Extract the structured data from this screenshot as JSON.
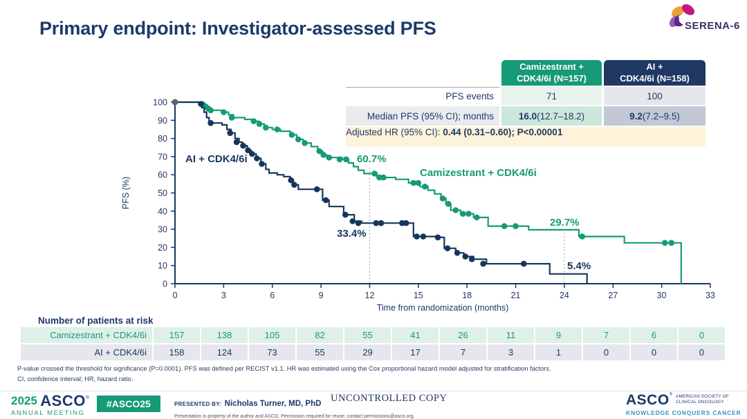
{
  "slide": {
    "title": "Primary endpoint: Investigator-assessed PFS",
    "logo_text": "SERENA-6"
  },
  "summary_table": {
    "header": [
      {
        "line1": "Camizestrant +",
        "line2": "CDK4/6i (N=157)"
      },
      {
        "line1": "AI +",
        "line2": "CDK4/6i (N=158)"
      }
    ],
    "rows": [
      {
        "label": "PFS events",
        "cami": "71",
        "ai": "100"
      },
      {
        "label": "Median PFS (95% CI); months",
        "cami_bold": "16.0",
        "cami_rest": " (12.7–18.2)",
        "ai_bold": "9.2",
        "ai_rest": " (7.2–9.5)"
      }
    ],
    "hr": {
      "label": "Adjusted HR (95% CI): ",
      "value": "0.44 (0.31–0.60); P<0.00001"
    }
  },
  "chart_data": {
    "type": "line",
    "subtype": "kaplan-meier-step",
    "xlabel": "Time from randomization (months)",
    "ylabel": "PFS (%)",
    "xlim": [
      0,
      33
    ],
    "ylim": [
      0,
      100
    ],
    "xticks": [
      0,
      3,
      6,
      9,
      12,
      15,
      18,
      21,
      24,
      27,
      30,
      33
    ],
    "yticks": [
      0,
      10,
      20,
      30,
      40,
      50,
      60,
      70,
      80,
      90,
      100
    ],
    "axis_color": "#16365e",
    "reference_lines": [
      {
        "x": 12,
        "y_top": 64
      },
      {
        "x": 24,
        "y_top": 30
      }
    ],
    "start_marker": {
      "x": 0,
      "y": 100,
      "color": "#5a6170"
    },
    "series": [
      {
        "name": "Camizestrant + CDK4/6i",
        "color": "#169a78",
        "steps": [
          [
            0,
            100
          ],
          [
            1.6,
            100
          ],
          [
            1.75,
            98.5
          ],
          [
            1.9,
            97.5
          ],
          [
            2.05,
            96.5
          ],
          [
            2.2,
            95.5
          ],
          [
            2.9,
            94.5
          ],
          [
            3.3,
            93
          ],
          [
            3.6,
            91.5
          ],
          [
            4.3,
            90.5
          ],
          [
            4.8,
            89.5
          ],
          [
            5.15,
            88
          ],
          [
            5.5,
            86
          ],
          [
            6.0,
            85
          ],
          [
            6.5,
            84
          ],
          [
            7.1,
            82
          ],
          [
            7.5,
            79.5
          ],
          [
            7.9,
            77.5
          ],
          [
            8.4,
            75.5
          ],
          [
            8.8,
            73
          ],
          [
            9.1,
            71
          ],
          [
            9.35,
            69.5
          ],
          [
            10.3,
            68.5
          ],
          [
            10.7,
            66.5
          ],
          [
            11.0,
            64.5
          ],
          [
            11.3,
            62.5
          ],
          [
            11.65,
            60.7
          ],
          [
            12.45,
            58.5
          ],
          [
            13.6,
            57.5
          ],
          [
            14.4,
            55.5
          ],
          [
            15.1,
            53.5
          ],
          [
            15.6,
            51.5
          ],
          [
            16.0,
            49.5
          ],
          [
            16.4,
            47
          ],
          [
            16.7,
            44
          ],
          [
            17.0,
            40.5
          ],
          [
            17.6,
            38.5
          ],
          [
            18.4,
            36.5
          ],
          [
            19.3,
            31.7
          ],
          [
            21.8,
            29.7
          ],
          [
            24.9,
            26
          ],
          [
            27.7,
            22.5
          ],
          [
            31.2,
            22.5
          ],
          [
            31.2,
            0
          ]
        ],
        "censor_marks": [
          [
            1.75,
            98.5
          ],
          [
            1.9,
            97.5
          ],
          [
            2.05,
            96.5
          ],
          [
            2.2,
            95.5
          ],
          [
            3.0,
            94.5
          ],
          [
            3.5,
            91.5
          ],
          [
            4.85,
            89.5
          ],
          [
            5.2,
            88
          ],
          [
            5.6,
            86
          ],
          [
            6.3,
            85
          ],
          [
            7.2,
            82
          ],
          [
            7.6,
            79.5
          ],
          [
            8.0,
            77.5
          ],
          [
            8.9,
            73
          ],
          [
            9.15,
            71
          ],
          [
            9.5,
            69.5
          ],
          [
            10.15,
            68.5
          ],
          [
            10.55,
            68.5
          ],
          [
            12.3,
            60.7
          ],
          [
            12.6,
            58.5
          ],
          [
            12.85,
            58.5
          ],
          [
            14.7,
            55.5
          ],
          [
            15.0,
            55.5
          ],
          [
            15.4,
            53.5
          ],
          [
            16.5,
            47
          ],
          [
            16.85,
            44
          ],
          [
            17.3,
            40.5
          ],
          [
            17.75,
            38.5
          ],
          [
            18.1,
            38.5
          ],
          [
            18.6,
            36.5
          ],
          [
            20.3,
            31.7
          ],
          [
            21.0,
            31.7
          ],
          [
            25.1,
            26
          ],
          [
            30.2,
            22.5
          ],
          [
            30.6,
            22.5
          ]
        ]
      },
      {
        "name": "AI + CDK4/6i",
        "color": "#16365e",
        "steps": [
          [
            0,
            100
          ],
          [
            1.5,
            100
          ],
          [
            1.65,
            97
          ],
          [
            1.8,
            94.5
          ],
          [
            1.95,
            91.5
          ],
          [
            2.1,
            88.5
          ],
          [
            2.9,
            87.5
          ],
          [
            3.2,
            85
          ],
          [
            3.45,
            83
          ],
          [
            3.7,
            80
          ],
          [
            3.95,
            78
          ],
          [
            4.15,
            76
          ],
          [
            4.45,
            73.5
          ],
          [
            4.7,
            71.5
          ],
          [
            5.0,
            69
          ],
          [
            5.3,
            66
          ],
          [
            5.6,
            63
          ],
          [
            5.8,
            61
          ],
          [
            6.3,
            60
          ],
          [
            6.7,
            59
          ],
          [
            7.1,
            57
          ],
          [
            7.3,
            54.5
          ],
          [
            7.6,
            52
          ],
          [
            9.1,
            46
          ],
          [
            9.5,
            42.5
          ],
          [
            10.4,
            38
          ],
          [
            11.05,
            34.4
          ],
          [
            11.5,
            33.4
          ],
          [
            14.5,
            33.4
          ],
          [
            14.7,
            26
          ],
          [
            16.3,
            25.5
          ],
          [
            16.6,
            19.5
          ],
          [
            17.3,
            17
          ],
          [
            17.8,
            15
          ],
          [
            18.4,
            13.5
          ],
          [
            19.2,
            11
          ],
          [
            23.1,
            5.4
          ],
          [
            25.4,
            5.4
          ],
          [
            25.4,
            0
          ]
        ],
        "censor_marks": [
          [
            1.6,
            99
          ],
          [
            2.2,
            88.5
          ],
          [
            3.4,
            83
          ],
          [
            3.8,
            78
          ],
          [
            4.2,
            76
          ],
          [
            4.5,
            73.5
          ],
          [
            4.75,
            71.5
          ],
          [
            5.05,
            69
          ],
          [
            5.35,
            66
          ],
          [
            7.15,
            57
          ],
          [
            7.35,
            54.5
          ],
          [
            8.75,
            52
          ],
          [
            9.3,
            46
          ],
          [
            10.5,
            38
          ],
          [
            10.95,
            34.4
          ],
          [
            11.3,
            33.4
          ],
          [
            12.4,
            33.4
          ],
          [
            12.7,
            33.4
          ],
          [
            14.0,
            33.4
          ],
          [
            14.25,
            33.4
          ],
          [
            14.9,
            26
          ],
          [
            15.3,
            26
          ],
          [
            16.2,
            25.5
          ],
          [
            16.8,
            19.5
          ],
          [
            17.4,
            17
          ],
          [
            17.9,
            15
          ],
          [
            18.3,
            13.5
          ],
          [
            19.0,
            11
          ],
          [
            21.5,
            11
          ]
        ]
      }
    ],
    "annotations": [
      {
        "text": "60.7%",
        "series": "Camizestrant + CDK4/6i",
        "x": 12,
        "y": 60.7
      },
      {
        "text": "33.4%",
        "series": "AI + CDK4/6i",
        "x": 12,
        "y": 33.4
      },
      {
        "text": "29.7%",
        "series": "Camizestrant + CDK4/6i",
        "x": 24,
        "y": 29.7
      },
      {
        "text": "5.4%",
        "series": "AI + CDK4/6i",
        "x": 24,
        "y": 5.4
      }
    ]
  },
  "at_risk": {
    "heading": "Number of patients at risk",
    "rows": [
      {
        "label": "Camizestrant + CDK4/6i",
        "values": [
          157,
          138,
          105,
          82,
          55,
          41,
          26,
          11,
          9,
          7,
          6,
          0
        ]
      },
      {
        "label": "AI + CDK4/6i",
        "values": [
          158,
          124,
          73,
          55,
          29,
          17,
          7,
          3,
          1,
          0,
          0,
          0
        ]
      }
    ]
  },
  "footnote": {
    "line1": "P-value crossed the threshold for significance (P=0.0001). PFS was defined per RECIST v1.1. HR was estimated using the Cox proportional hazard model adjusted for stratification factors.",
    "line2": "CI, confidence interval; HR, hazard ratio."
  },
  "footer": {
    "asco_year": "2025",
    "asco_name": "ASCO",
    "annual_meeting": "ANNUAL MEETING",
    "hashtag": "#ASCO25",
    "presented_label": "PRESENTED BY:",
    "presenter": "Nicholas Turner, MD, PhD",
    "disclaimer": "Presentation is property of the author and ASCO. Permission required for reuse; contact permissions@asco.org.",
    "uncontrolled": "UNCONTROLLED COPY",
    "asco_right": "ASCO",
    "society_line1": "AMERICAN SOCIETY OF",
    "society_line2": "CLINICAL ONCOLOGY",
    "tagline": "KNOWLEDGE CONQUERS CANCER"
  }
}
